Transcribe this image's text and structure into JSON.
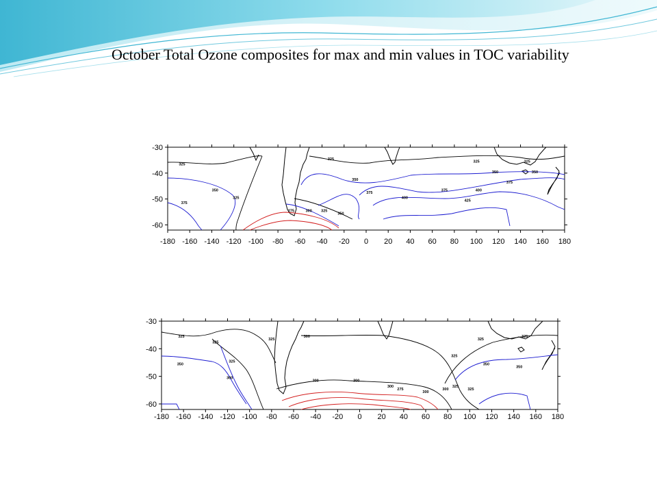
{
  "title": "October Total Ozone composites for max and min values in TOC variability",
  "colors": {
    "banner_light": "#cdeef5",
    "banner_mid": "#7fd3e6",
    "banner_dark": "#3fb6d3",
    "contour_blue": "#1a1ad0",
    "contour_red": "#d21a1a",
    "contour_black": "#000000"
  },
  "chart_data": [
    {
      "type": "contour",
      "panel": "max",
      "x_ticks": [
        -180,
        -160,
        -140,
        -120,
        -100,
        -80,
        -60,
        -40,
        -20,
        0,
        20,
        40,
        60,
        80,
        100,
        120,
        140,
        160,
        180
      ],
      "y_ticks": [
        -30,
        -40,
        -50,
        -60
      ],
      "xlim": [
        -180,
        180
      ],
      "ylim": [
        -62,
        -30
      ],
      "contour_labels": [
        {
          "text": "325",
          "lon": -167,
          "lat": -37
        },
        {
          "text": "350",
          "lon": -137,
          "lat": -47
        },
        {
          "text": "375",
          "lon": -165,
          "lat": -52
        },
        {
          "text": "325",
          "lon": -118,
          "lat": -50
        },
        {
          "text": "275",
          "lon": -68,
          "lat": -55
        },
        {
          "text": "300",
          "lon": -52,
          "lat": -55
        },
        {
          "text": "325",
          "lon": -38,
          "lat": -55
        },
        {
          "text": "350",
          "lon": -23,
          "lat": -56
        },
        {
          "text": "325",
          "lon": -32,
          "lat": -35
        },
        {
          "text": "350",
          "lon": -10,
          "lat": -43
        },
        {
          "text": "375",
          "lon": 3,
          "lat": -48
        },
        {
          "text": "400",
          "lon": 35,
          "lat": -50
        },
        {
          "text": "325",
          "lon": 100,
          "lat": -36
        },
        {
          "text": "350",
          "lon": 117,
          "lat": -40
        },
        {
          "text": "375",
          "lon": 130,
          "lat": -44
        },
        {
          "text": "375",
          "lon": 71,
          "lat": -47
        },
        {
          "text": "400",
          "lon": 102,
          "lat": -47
        },
        {
          "text": "425",
          "lon": 92,
          "lat": -51
        },
        {
          "text": "325",
          "lon": 146,
          "lat": -36
        },
        {
          "text": "350",
          "lon": 153,
          "lat": -40
        }
      ]
    },
    {
      "type": "contour",
      "panel": "min",
      "x_ticks": [
        -180,
        -160,
        -140,
        -120,
        -100,
        -80,
        -60,
        -40,
        -20,
        0,
        20,
        40,
        60,
        80,
        100,
        120,
        140,
        160,
        180
      ],
      "y_ticks": [
        -30,
        -40,
        -50,
        -60
      ],
      "xlim": [
        -180,
        180
      ],
      "ylim": [
        -62,
        -30
      ],
      "contour_labels": [
        {
          "text": "325",
          "lon": -162,
          "lat": -36
        },
        {
          "text": "325",
          "lon": -131,
          "lat": -38
        },
        {
          "text": "350",
          "lon": -163,
          "lat": -46
        },
        {
          "text": "325",
          "lon": -116,
          "lat": -45
        },
        {
          "text": "300",
          "lon": -118,
          "lat": -51
        },
        {
          "text": "325",
          "lon": -80,
          "lat": -37
        },
        {
          "text": "300",
          "lon": -48,
          "lat": -36
        },
        {
          "text": "300",
          "lon": -40,
          "lat": -52
        },
        {
          "text": "300",
          "lon": -3,
          "lat": -52
        },
        {
          "text": "300",
          "lon": 28,
          "lat": -54
        },
        {
          "text": "275",
          "lon": 37,
          "lat": -55
        },
        {
          "text": "300",
          "lon": 60,
          "lat": -56
        },
        {
          "text": "300",
          "lon": 78,
          "lat": -55
        },
        {
          "text": "325",
          "lon": 110,
          "lat": -37
        },
        {
          "text": "325",
          "lon": 150,
          "lat": -36
        },
        {
          "text": "325",
          "lon": 86,
          "lat": -43
        },
        {
          "text": "350",
          "lon": 115,
          "lat": -46
        },
        {
          "text": "350",
          "lon": 145,
          "lat": -47
        },
        {
          "text": "325",
          "lon": 87,
          "lat": -54
        },
        {
          "text": "325",
          "lon": 101,
          "lat": -55
        }
      ]
    }
  ]
}
